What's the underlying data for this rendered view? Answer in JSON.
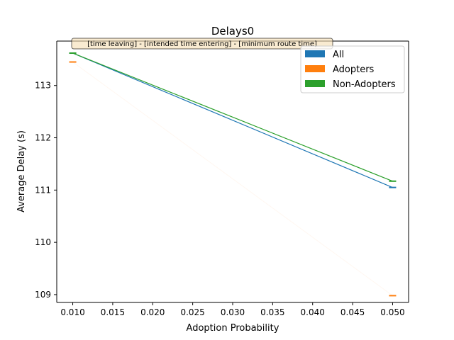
{
  "chart_data": {
    "type": "line",
    "title": "Delays0",
    "xlabel": "Adoption Probability",
    "ylabel": "Average Delay (s)",
    "xlim": [
      0.008,
      0.052
    ],
    "ylim": [
      108.85,
      113.85
    ],
    "x_ticks": [
      "0.010",
      "0.015",
      "0.020",
      "0.025",
      "0.030",
      "0.035",
      "0.040",
      "0.045",
      "0.050"
    ],
    "x_tick_values": [
      0.01,
      0.015,
      0.02,
      0.025,
      0.03,
      0.035,
      0.04,
      0.045,
      0.05
    ],
    "y_ticks": [
      "109",
      "110",
      "111",
      "112",
      "113"
    ],
    "y_tick_values": [
      109,
      110,
      111,
      112,
      113
    ],
    "x": [
      0.01,
      0.05
    ],
    "series": [
      {
        "name": "All",
        "color": "#1f77b4",
        "values": [
          113.62,
          111.05
        ]
      },
      {
        "name": "Adopters",
        "color": "#ff7f0e",
        "values": [
          113.45,
          108.98
        ]
      },
      {
        "name": "Non-Adopters",
        "color": "#2ca02c",
        "values": [
          113.62,
          111.17
        ]
      }
    ],
    "annotation": "[time leaving] - [intended time entering] - [minimum route time]",
    "legend": "top-right",
    "grid": false
  }
}
